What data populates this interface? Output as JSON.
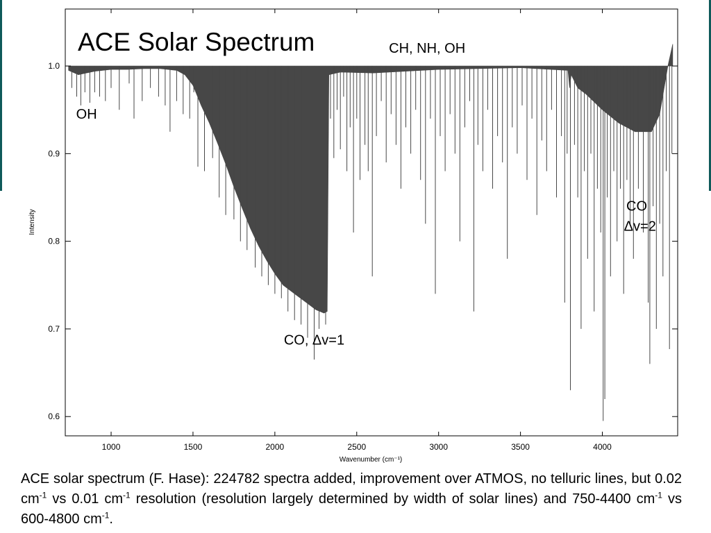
{
  "chart_data": {
    "type": "line",
    "title": "ACE Solar Spectrum",
    "xlabel": "Wavenumber (cm⁻¹)",
    "ylabel": "Intensity",
    "xlim": [
      720,
      4460
    ],
    "ylim": [
      0.578,
      1.065
    ],
    "x_ticks": [
      1000,
      1500,
      2000,
      2500,
      3000,
      3500,
      4000
    ],
    "y_ticks": [
      0.6,
      0.7,
      0.8,
      0.9,
      1.0
    ],
    "annotations": [
      {
        "text": "OH",
        "x": 850,
        "y": 0.94
      },
      {
        "text": "CH, NH, OH",
        "x": 2930,
        "y": 1.015
      },
      {
        "text": "CO, Δv=1",
        "x": 2240,
        "y": 0.682
      },
      {
        "text": "CO",
        "x": 4210,
        "y": 0.835
      },
      {
        "text": "Δv=2",
        "x": 4230,
        "y": 0.812
      }
    ],
    "series": [
      {
        "envelope": {
          "x": [
            740,
            800,
            900,
            1000,
            1100,
            1200,
            1300,
            1400,
            1450,
            1500,
            1550,
            1600,
            1650,
            1700,
            1750,
            1800,
            1850,
            1900,
            1950,
            2000,
            2050,
            2100,
            2150,
            2200,
            2250,
            2300,
            2320,
            2330,
            2400,
            2600,
            3000,
            3500,
            3790,
            3800,
            3810,
            3850,
            3900,
            4000,
            4100,
            4200,
            4300,
            4350,
            4400,
            4430
          ],
          "y": [
            0.995,
            0.99,
            0.994,
            0.996,
            0.996,
            0.997,
            0.997,
            0.995,
            0.99,
            0.978,
            0.955,
            0.935,
            0.912,
            0.888,
            0.862,
            0.838,
            0.815,
            0.795,
            0.778,
            0.763,
            0.75,
            0.743,
            0.736,
            0.729,
            0.722,
            0.718,
            0.72,
            0.99,
            0.993,
            0.992,
            0.996,
            0.998,
            0.995,
            0.975,
            0.99,
            0.975,
            0.968,
            0.95,
            0.935,
            0.925,
            0.925,
            0.945,
            1.0,
            1.025
          ]
        },
        "lines": [
          {
            "x": 760,
            "y": 0.975
          },
          {
            "x": 790,
            "y": 0.965
          },
          {
            "x": 815,
            "y": 0.955
          },
          {
            "x": 840,
            "y": 0.97
          },
          {
            "x": 870,
            "y": 0.958
          },
          {
            "x": 900,
            "y": 0.97
          },
          {
            "x": 930,
            "y": 0.965
          },
          {
            "x": 965,
            "y": 0.96
          },
          {
            "x": 1000,
            "y": 0.975
          },
          {
            "x": 1050,
            "y": 0.95
          },
          {
            "x": 1110,
            "y": 0.98
          },
          {
            "x": 1140,
            "y": 0.94
          },
          {
            "x": 1190,
            "y": 0.96
          },
          {
            "x": 1240,
            "y": 0.975
          },
          {
            "x": 1290,
            "y": 0.965
          },
          {
            "x": 1330,
            "y": 0.955
          },
          {
            "x": 1360,
            "y": 0.925
          },
          {
            "x": 1400,
            "y": 0.96
          },
          {
            "x": 1440,
            "y": 0.945
          },
          {
            "x": 1480,
            "y": 0.94
          },
          {
            "x": 1505,
            "y": 0.97
          },
          {
            "x": 1530,
            "y": 0.885
          },
          {
            "x": 1570,
            "y": 0.88
          },
          {
            "x": 1620,
            "y": 0.895
          },
          {
            "x": 1660,
            "y": 0.85
          },
          {
            "x": 1700,
            "y": 0.83
          },
          {
            "x": 1750,
            "y": 0.825
          },
          {
            "x": 1790,
            "y": 0.8
          },
          {
            "x": 1830,
            "y": 0.79
          },
          {
            "x": 1880,
            "y": 0.77
          },
          {
            "x": 1920,
            "y": 0.76
          },
          {
            "x": 1960,
            "y": 0.75
          },
          {
            "x": 2000,
            "y": 0.74
          },
          {
            "x": 2040,
            "y": 0.735
          },
          {
            "x": 2080,
            "y": 0.72
          },
          {
            "x": 2120,
            "y": 0.71
          },
          {
            "x": 2160,
            "y": 0.705
          },
          {
            "x": 2200,
            "y": 0.69
          },
          {
            "x": 2240,
            "y": 0.665
          },
          {
            "x": 2270,
            "y": 0.7
          },
          {
            "x": 2310,
            "y": 0.705
          },
          {
            "x": 2340,
            "y": 0.94
          },
          {
            "x": 2360,
            "y": 0.895
          },
          {
            "x": 2380,
            "y": 0.95
          },
          {
            "x": 2400,
            "y": 0.905
          },
          {
            "x": 2420,
            "y": 0.965
          },
          {
            "x": 2440,
            "y": 0.88
          },
          {
            "x": 2460,
            "y": 0.93
          },
          {
            "x": 2480,
            "y": 0.81
          },
          {
            "x": 2500,
            "y": 0.94
          },
          {
            "x": 2520,
            "y": 0.87
          },
          {
            "x": 2550,
            "y": 0.91
          },
          {
            "x": 2570,
            "y": 0.88
          },
          {
            "x": 2595,
            "y": 0.76
          },
          {
            "x": 2620,
            "y": 0.92
          },
          {
            "x": 2650,
            "y": 0.96
          },
          {
            "x": 2680,
            "y": 0.89
          },
          {
            "x": 2710,
            "y": 0.945
          },
          {
            "x": 2740,
            "y": 0.91
          },
          {
            "x": 2770,
            "y": 0.86
          },
          {
            "x": 2800,
            "y": 0.93
          },
          {
            "x": 2830,
            "y": 0.9
          },
          {
            "x": 2860,
            "y": 0.95
          },
          {
            "x": 2890,
            "y": 0.87
          },
          {
            "x": 2920,
            "y": 0.82
          },
          {
            "x": 2950,
            "y": 0.94
          },
          {
            "x": 2980,
            "y": 0.74
          },
          {
            "x": 3010,
            "y": 0.92
          },
          {
            "x": 3040,
            "y": 0.88
          },
          {
            "x": 3070,
            "y": 0.945
          },
          {
            "x": 3100,
            "y": 0.9
          },
          {
            "x": 3130,
            "y": 0.8
          },
          {
            "x": 3160,
            "y": 0.93
          },
          {
            "x": 3190,
            "y": 0.96
          },
          {
            "x": 3215,
            "y": 0.72
          },
          {
            "x": 3240,
            "y": 0.91
          },
          {
            "x": 3270,
            "y": 0.88
          },
          {
            "x": 3300,
            "y": 0.95
          },
          {
            "x": 3330,
            "y": 0.86
          },
          {
            "x": 3360,
            "y": 0.92
          },
          {
            "x": 3390,
            "y": 0.89
          },
          {
            "x": 3420,
            "y": 0.78
          },
          {
            "x": 3450,
            "y": 0.93
          },
          {
            "x": 3480,
            "y": 0.9
          },
          {
            "x": 3510,
            "y": 0.955
          },
          {
            "x": 3540,
            "y": 0.87
          },
          {
            "x": 3570,
            "y": 0.94
          },
          {
            "x": 3600,
            "y": 0.83
          },
          {
            "x": 3630,
            "y": 0.915
          },
          {
            "x": 3660,
            "y": 0.88
          },
          {
            "x": 3690,
            "y": 0.95
          },
          {
            "x": 3720,
            "y": 0.85
          },
          {
            "x": 3750,
            "y": 0.92
          },
          {
            "x": 3770,
            "y": 0.73
          },
          {
            "x": 3785,
            "y": 0.9
          },
          {
            "x": 3805,
            "y": 0.63
          },
          {
            "x": 3830,
            "y": 0.91
          },
          {
            "x": 3850,
            "y": 0.85
          },
          {
            "x": 3870,
            "y": 0.7
          },
          {
            "x": 3890,
            "y": 0.88
          },
          {
            "x": 3910,
            "y": 0.78
          },
          {
            "x": 3930,
            "y": 0.9
          },
          {
            "x": 3950,
            "y": 0.72
          },
          {
            "x": 3970,
            "y": 0.86
          },
          {
            "x": 3990,
            "y": 0.81
          },
          {
            "x": 4005,
            "y": 0.595
          },
          {
            "x": 4015,
            "y": 0.62
          },
          {
            "x": 4030,
            "y": 0.85
          },
          {
            "x": 4050,
            "y": 0.76
          },
          {
            "x": 4070,
            "y": 0.88
          },
          {
            "x": 4090,
            "y": 0.8
          },
          {
            "x": 4110,
            "y": 0.86
          },
          {
            "x": 4130,
            "y": 0.74
          },
          {
            "x": 4150,
            "y": 0.87
          },
          {
            "x": 4170,
            "y": 0.82
          },
          {
            "x": 4190,
            "y": 0.78
          },
          {
            "x": 4220,
            "y": 0.86
          },
          {
            "x": 4250,
            "y": 0.81
          },
          {
            "x": 4280,
            "y": 0.73
          },
          {
            "x": 4290,
            "y": 0.66
          },
          {
            "x": 4310,
            "y": 0.84
          },
          {
            "x": 4330,
            "y": 0.7
          },
          {
            "x": 4350,
            "y": 0.82
          },
          {
            "x": 4370,
            "y": 0.76
          },
          {
            "x": 4390,
            "y": 0.88
          },
          {
            "x": 4410,
            "y": 0.677
          },
          {
            "x": 4425,
            "y": 0.9
          }
        ]
      }
    ],
    "grid": false
  },
  "caption": {
    "part1": "ACE solar spectrum (F. Hase): 224782 spectra added, improvement over ATMOS, no telluric lines, but 0.02 cm",
    "sup1": "-1",
    "part2": " vs 0.01 cm",
    "sup2": "-1",
    "part3": " resolution (resolution largely determined by width of solar lines) and 750-4400 cm",
    "sup3": "-1",
    "part4": " vs 600-4800 cm",
    "sup4": "-1",
    "part5": "."
  },
  "colors": {
    "spectrum": "#474747",
    "stripe": "#0f5a5a"
  }
}
